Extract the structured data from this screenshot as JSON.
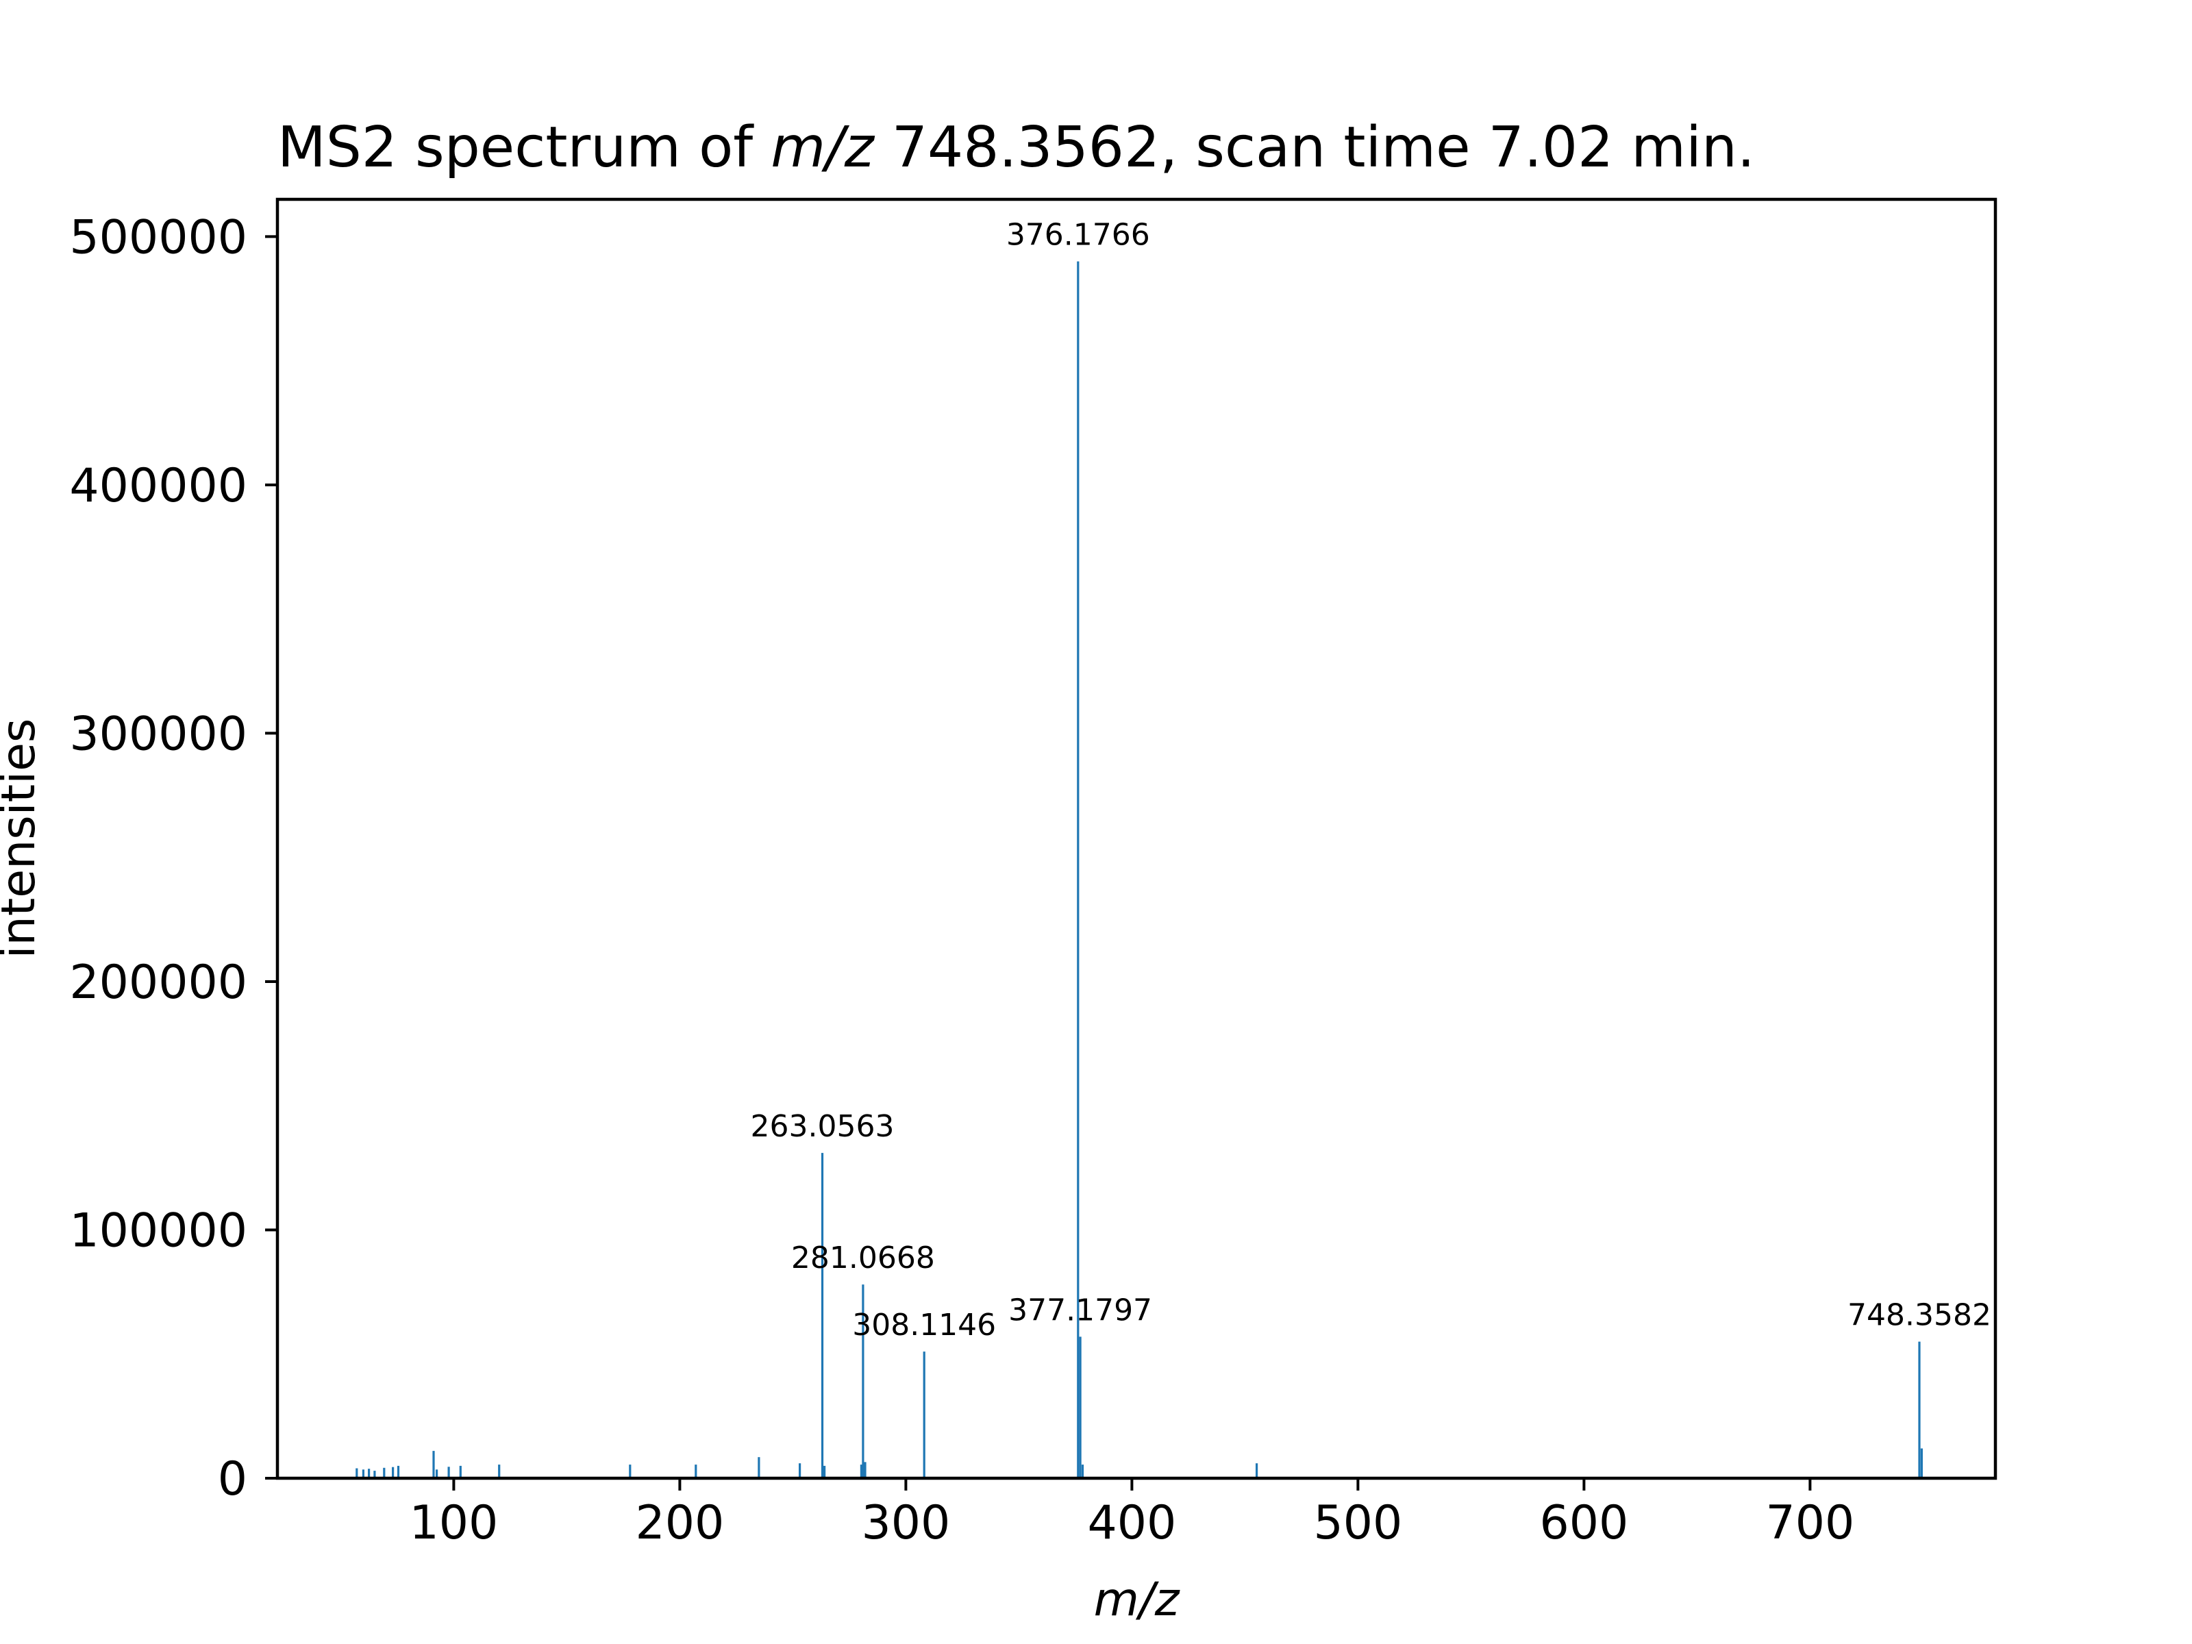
{
  "chart_data": {
    "type": "bar",
    "title_prefix": "MS2 spectrum of ",
    "title_italic": "m/z",
    "title_suffix": " 748.3562, scan time 7.02 min.",
    "xlabel": "m/z",
    "ylabel": "intensities",
    "xlim": [
      22,
      782
    ],
    "ylim": [
      0,
      515000
    ],
    "xticks": [
      100,
      200,
      300,
      400,
      500,
      600,
      700
    ],
    "xtick_labels": [
      "100",
      "200",
      "300",
      "400",
      "500",
      "600",
      "700"
    ],
    "yticks": [
      0,
      100000,
      200000,
      300000,
      400000,
      500000
    ],
    "ytick_labels": [
      "0",
      "100000",
      "200000",
      "300000",
      "400000",
      "500000"
    ],
    "grid": false,
    "bar_color": "#1f77b4",
    "peaks": [
      {
        "mz": 57.1,
        "intensity": 4000
      },
      {
        "mz": 60.0,
        "intensity": 3500
      },
      {
        "mz": 62.5,
        "intensity": 3800
      },
      {
        "mz": 65.0,
        "intensity": 3000
      },
      {
        "mz": 69.2,
        "intensity": 4200
      },
      {
        "mz": 73.1,
        "intensity": 4500
      },
      {
        "mz": 75.5,
        "intensity": 5000
      },
      {
        "mz": 91.1,
        "intensity": 11000
      },
      {
        "mz": 92.5,
        "intensity": 3500
      },
      {
        "mz": 97.8,
        "intensity": 4600
      },
      {
        "mz": 103.0,
        "intensity": 5000
      },
      {
        "mz": 120.1,
        "intensity": 5500
      },
      {
        "mz": 178.0,
        "intensity": 5500
      },
      {
        "mz": 207.1,
        "intensity": 5500
      },
      {
        "mz": 235.0,
        "intensity": 8500
      },
      {
        "mz": 253.1,
        "intensity": 6000
      },
      {
        "mz": 263.0563,
        "intensity": 131000
      },
      {
        "mz": 264.0,
        "intensity": 5000
      },
      {
        "mz": 280.3,
        "intensity": 5500
      },
      {
        "mz": 281.0668,
        "intensity": 78000
      },
      {
        "mz": 282.0,
        "intensity": 6500
      },
      {
        "mz": 308.1146,
        "intensity": 51000
      },
      {
        "mz": 376.1766,
        "intensity": 490000
      },
      {
        "mz": 377.1797,
        "intensity": 57000
      },
      {
        "mz": 378.2,
        "intensity": 5500
      },
      {
        "mz": 455.2,
        "intensity": 6000
      },
      {
        "mz": 748.3582,
        "intensity": 55000
      },
      {
        "mz": 749.4,
        "intensity": 12000
      }
    ],
    "annotations": [
      {
        "mz": 263.0563,
        "intensity": 131000,
        "label": "263.0563"
      },
      {
        "mz": 281.0668,
        "intensity": 78000,
        "label": "281.0668"
      },
      {
        "mz": 308.1146,
        "intensity": 51000,
        "label": "308.1146"
      },
      {
        "mz": 376.1766,
        "intensity": 490000,
        "label": "376.1766"
      },
      {
        "mz": 377.1797,
        "intensity": 57000,
        "label": "377.1797"
      },
      {
        "mz": 748.3582,
        "intensity": 55000,
        "label": "748.3582"
      }
    ]
  }
}
